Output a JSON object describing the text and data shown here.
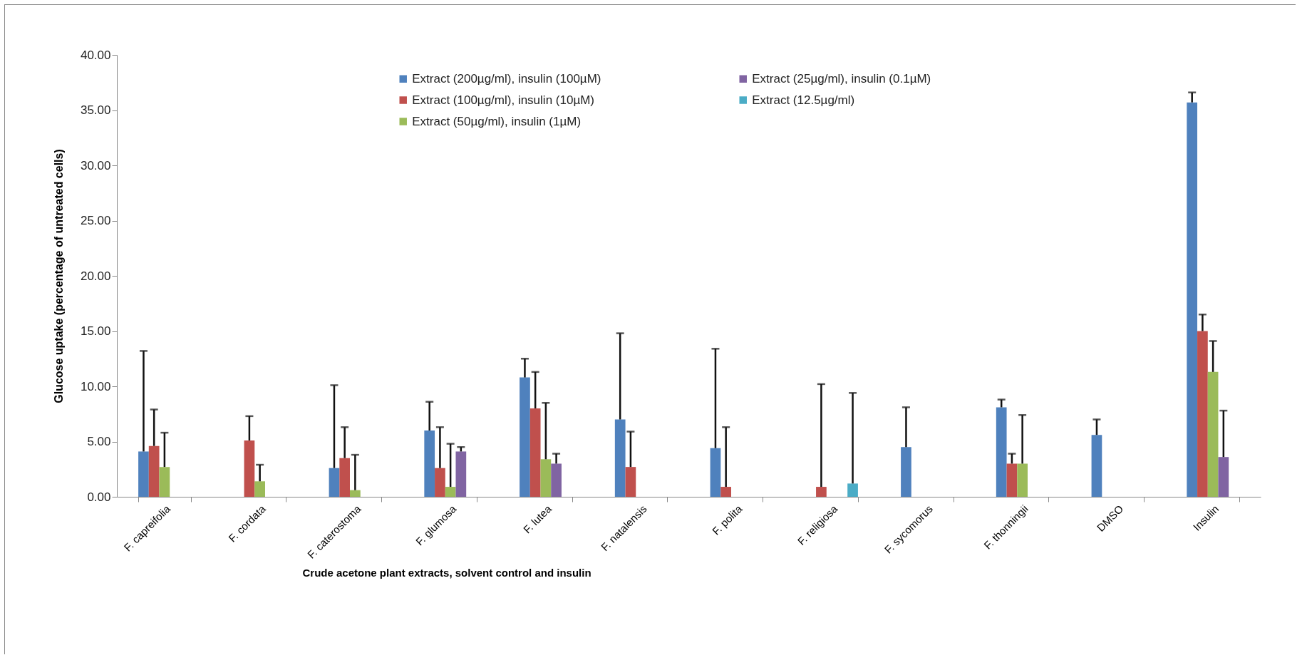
{
  "chart_data": {
    "type": "bar",
    "xlabel": "Crude acetone plant extracts, solvent control and insulin",
    "ylabel": "Glucose uptake (percentage of untreated cells)",
    "categories": [
      "F. capreifolia",
      "F. cordata",
      "F. caterostoma",
      "F. glumosa",
      "F. lutea",
      "F. natalensis",
      "F. polita",
      "F. religiosa",
      "F. sycomorus",
      "F. thonningii",
      "DMSO",
      "Insulin"
    ],
    "series": [
      {
        "name": "Extract (200µg/ml), insulin (100µM)",
        "color": "#4f81bd",
        "values": [
          4.1,
          null,
          2.6,
          6.0,
          10.8,
          7.0,
          4.4,
          null,
          4.5,
          8.1,
          5.6,
          35.7
        ],
        "errors": [
          [
            4.1,
            13.2
          ],
          null,
          [
            2.6,
            10.1
          ],
          [
            6.0,
            8.6
          ],
          [
            10.8,
            12.5
          ],
          [
            7.0,
            14.8
          ],
          [
            4.4,
            13.4
          ],
          null,
          [
            4.5,
            8.1
          ],
          [
            8.1,
            8.8
          ],
          [
            5.6,
            7.0
          ],
          [
            35.7,
            36.6
          ]
        ]
      },
      {
        "name": "Extract (100µg/ml), insulin (10µM)",
        "color": "#c0504d",
        "values": [
          4.6,
          5.1,
          3.5,
          2.6,
          8.0,
          2.7,
          0.9,
          0.9,
          null,
          3.0,
          null,
          15.0
        ],
        "errors": [
          [
            4.6,
            7.9
          ],
          [
            5.1,
            7.3
          ],
          [
            3.5,
            6.3
          ],
          [
            2.6,
            6.3
          ],
          [
            8.0,
            11.3
          ],
          [
            2.7,
            5.9
          ],
          [
            0.9,
            6.3
          ],
          [
            0.9,
            10.2
          ],
          null,
          [
            3.0,
            3.9
          ],
          null,
          [
            15.0,
            16.5
          ]
        ]
      },
      {
        "name": "Extract (50µg/ml), insulin (1µM)",
        "color": "#9bbb59",
        "values": [
          2.7,
          1.4,
          0.6,
          0.9,
          3.4,
          null,
          null,
          null,
          null,
          3.0,
          null,
          11.3
        ],
        "errors": [
          [
            2.7,
            5.8
          ],
          [
            1.4,
            2.9
          ],
          [
            0.6,
            3.8
          ],
          [
            0.9,
            4.8
          ],
          [
            3.4,
            8.5
          ],
          null,
          null,
          null,
          null,
          [
            3.0,
            7.4
          ],
          null,
          [
            11.3,
            14.1
          ]
        ]
      },
      {
        "name": "Extract (25µg/ml), insulin (0.1µM)",
        "color": "#8064a2",
        "values": [
          null,
          null,
          null,
          4.1,
          3.0,
          null,
          null,
          null,
          null,
          null,
          null,
          3.6
        ],
        "errors": [
          null,
          null,
          null,
          [
            4.1,
            4.5
          ],
          [
            3.0,
            3.9
          ],
          null,
          null,
          null,
          null,
          null,
          null,
          [
            3.6,
            7.8
          ]
        ]
      },
      {
        "name": "Extract (12.5µg/ml)",
        "color": "#4bacc6",
        "values": [
          null,
          null,
          null,
          null,
          null,
          null,
          null,
          1.2,
          null,
          null,
          null,
          null
        ],
        "errors": [
          null,
          null,
          null,
          null,
          null,
          null,
          null,
          [
            1.2,
            9.4
          ],
          null,
          null,
          null,
          null
        ]
      }
    ],
    "ylim": [
      0,
      40
    ],
    "yticks": [
      {
        "value": 0,
        "label": "0.00"
      },
      {
        "value": 5,
        "label": "5.00"
      },
      {
        "value": 10,
        "label": "10.00"
      },
      {
        "value": 15,
        "label": "15.00"
      },
      {
        "value": 20,
        "label": "20.00"
      },
      {
        "value": 25,
        "label": "25.00"
      },
      {
        "value": 30,
        "label": "30.00"
      },
      {
        "value": 35,
        "label": "35.00"
      },
      {
        "value": 40,
        "label": "40.00"
      }
    ],
    "grid": false,
    "legend": "top"
  }
}
